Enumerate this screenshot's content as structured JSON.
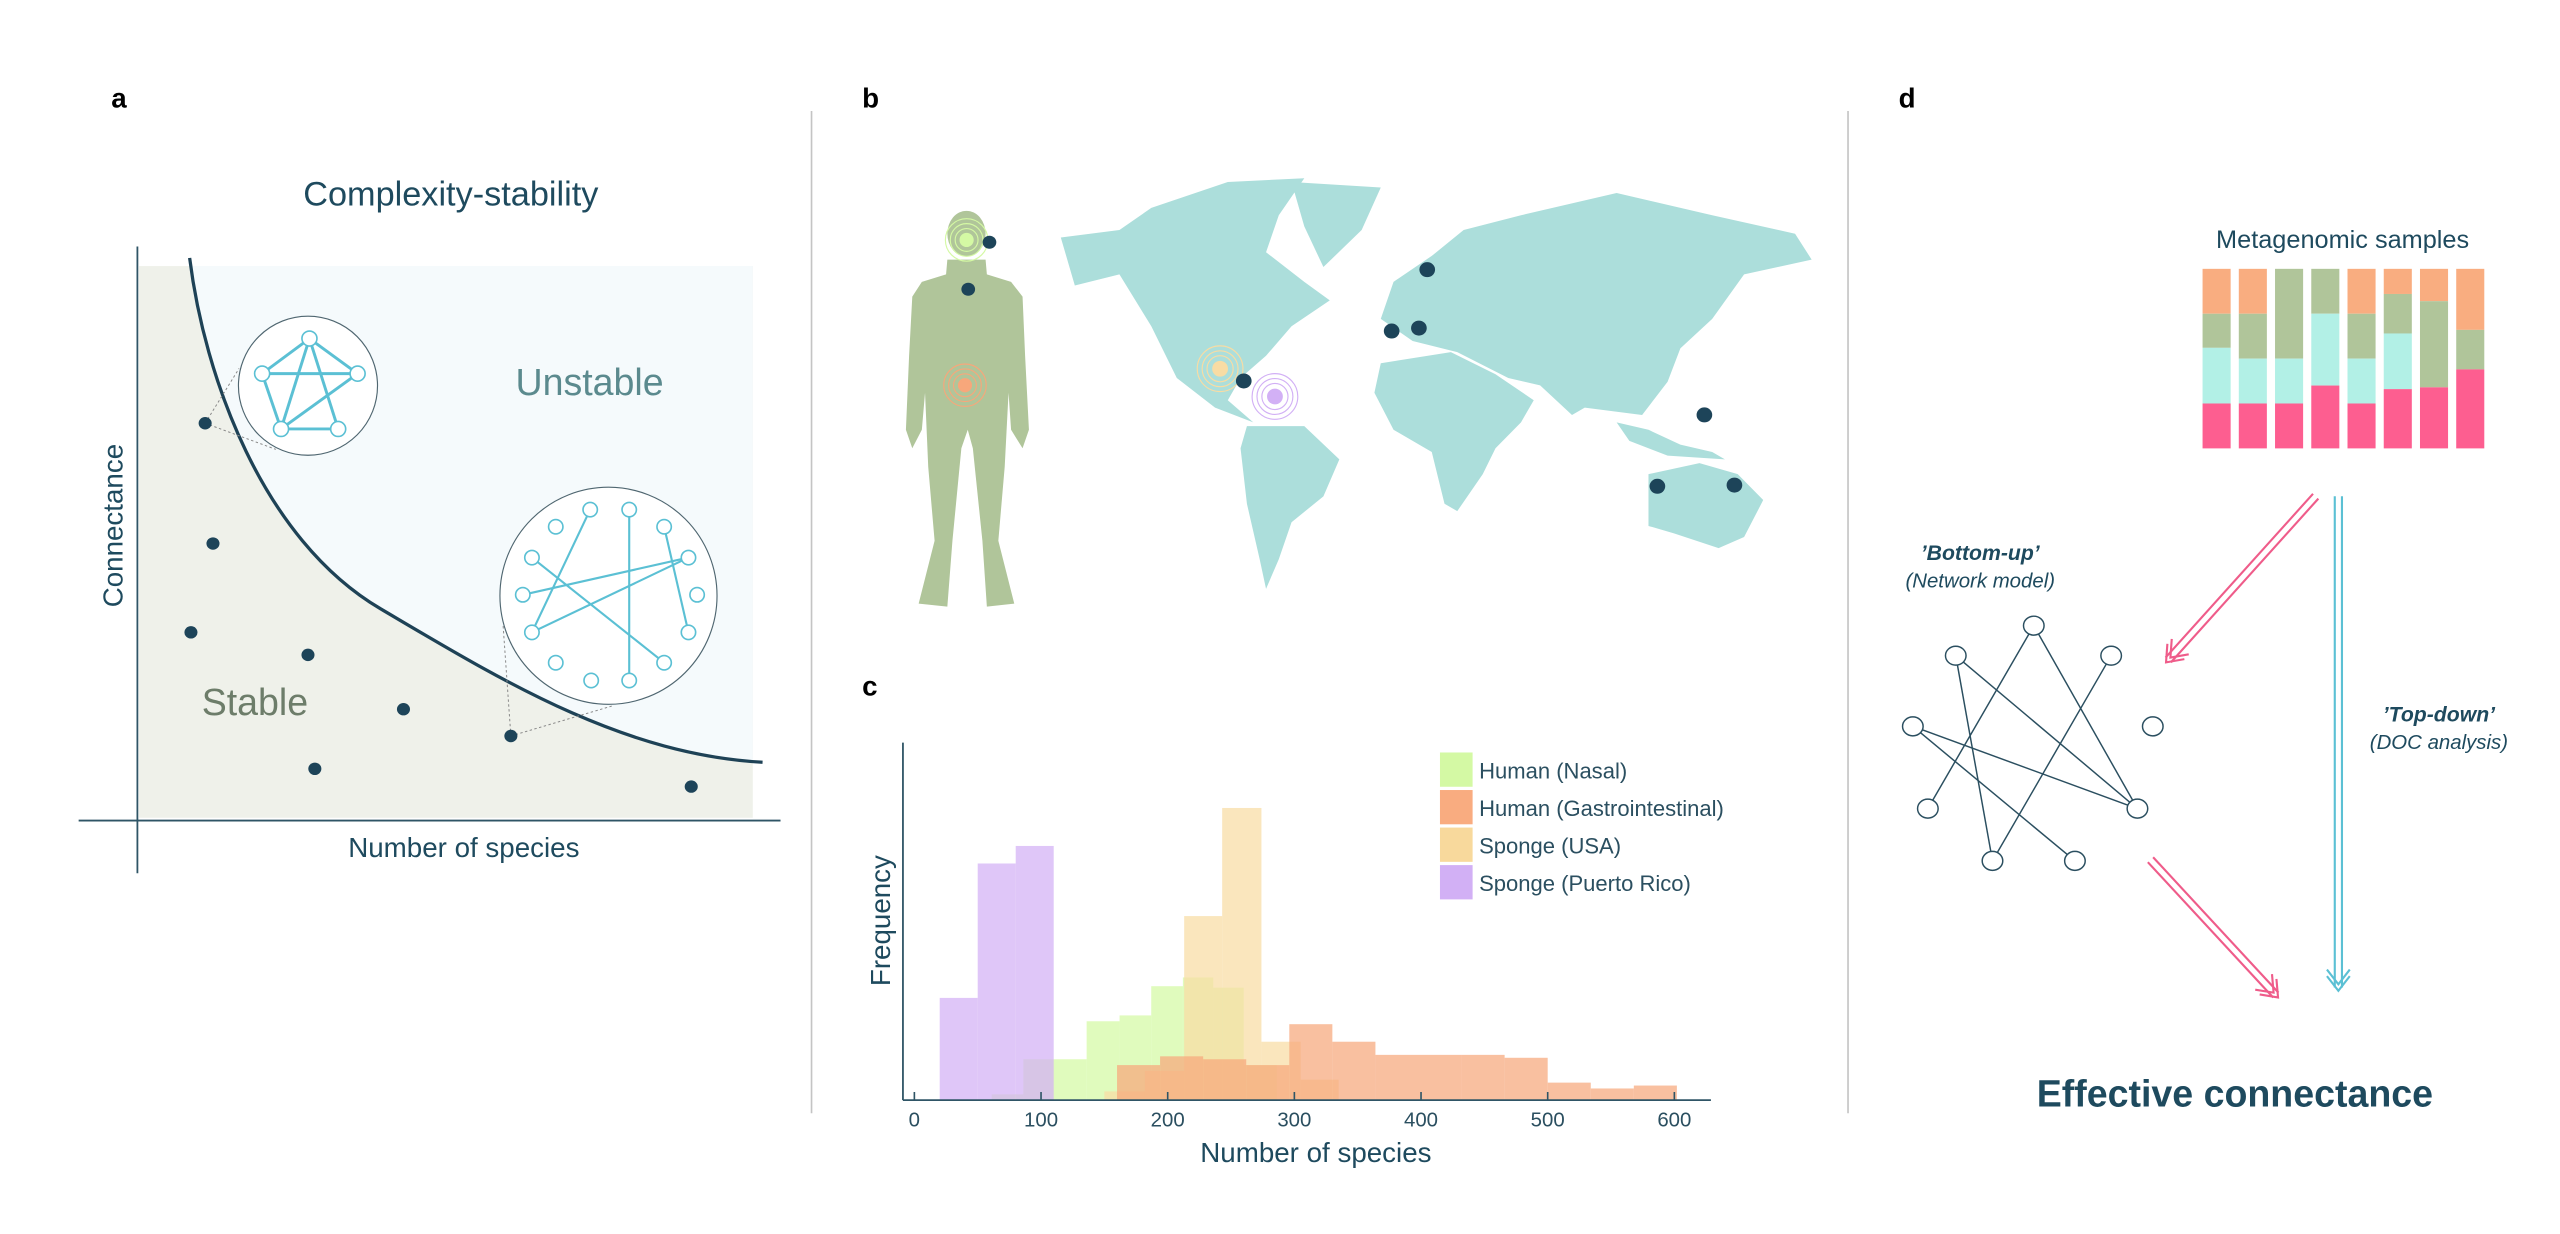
{
  "panel_labels": {
    "a": "a",
    "b": "b",
    "c": "c",
    "d": "d"
  },
  "panel_a": {
    "title": "Complexity-stability",
    "xlabel": "Number of species",
    "ylabel": "Connectance",
    "region_unstable": "Unstable",
    "region_stable": "Stable"
  },
  "panel_b": {
    "marker_colors": {
      "human_nasal": "#d4f9a4",
      "human_gut": "#f7a77b",
      "sponge_usa": "#f8dca4",
      "sponge_puerto_rico": "#d2b0f5",
      "site": "#1d4459"
    },
    "map_color": "#acdedb",
    "human_color": "#b0c59a"
  },
  "panel_d": {
    "samples_title": "Metagenomic samples",
    "bottom_up": "’Bottom-up’",
    "bottom_up_sub": "(Network model)",
    "top_down": "’Top-down’",
    "top_down_sub": "(DOC analysis)",
    "result": "Effective connectance",
    "segment_colors": [
      "#f9ad80",
      "#b0c59a",
      "#b2f0e6",
      "#fd5e90"
    ],
    "samples": [
      [
        0.25,
        0.19,
        0.31,
        0.25
      ],
      [
        0.25,
        0.25,
        0.25,
        0.25
      ],
      [
        0.0,
        0.5,
        0.25,
        0.25
      ],
      [
        0.0,
        0.25,
        0.4,
        0.35
      ],
      [
        0.25,
        0.25,
        0.25,
        0.25
      ],
      [
        0.14,
        0.22,
        0.31,
        0.33
      ],
      [
        0.18,
        0.48,
        0.0,
        0.34
      ],
      [
        0.34,
        0.22,
        0.0,
        0.44
      ]
    ],
    "arrow_colors": {
      "bottom_up": "#ef5c8a",
      "top_down": "#5bc0d4"
    }
  },
  "chart_data": {
    "type": "bar",
    "subtype": "overlapping histogram",
    "xlabel": "Number of species",
    "ylabel": "Frequency",
    "xlim": [
      -10,
      630
    ],
    "ylim": [
      0,
      122
    ],
    "xticks": [
      "0",
      "100",
      "200",
      "300",
      "400",
      "500",
      "600"
    ],
    "yticks": [],
    "legend_position": "top-right",
    "series": [
      {
        "name": "Human (Nasal)",
        "color": "#d4f9a4",
        "bins": [
          [
            61,
            86,
            2
          ],
          [
            86,
            111,
            14
          ],
          [
            111,
            136,
            14
          ],
          [
            136,
            162,
            27
          ],
          [
            162,
            187,
            29
          ],
          [
            187,
            212,
            39
          ],
          [
            212,
            236,
            42
          ],
          [
            236,
            260,
            38.5
          ],
          [
            260,
            286,
            12
          ]
        ]
      },
      {
        "name": "Human (Gastrointestinal)",
        "color": "#f7a77b",
        "bins": [
          [
            160,
            194,
            12
          ],
          [
            194,
            228,
            15
          ],
          [
            228,
            262,
            14
          ],
          [
            262,
            296,
            12
          ],
          [
            296,
            330,
            26
          ],
          [
            330,
            364,
            20
          ],
          [
            364,
            398,
            15.5
          ],
          [
            398,
            432,
            15.5
          ],
          [
            432,
            466,
            15.5
          ],
          [
            466,
            500,
            14.5
          ],
          [
            500,
            534,
            6
          ],
          [
            534,
            568,
            4
          ],
          [
            568,
            602,
            5
          ]
        ]
      },
      {
        "name": "Sponge (USA)",
        "color": "#f8dca4",
        "bins": [
          [
            150,
            182,
            3
          ],
          [
            182,
            213,
            10
          ],
          [
            213,
            243,
            63
          ],
          [
            243,
            274,
            100
          ],
          [
            274,
            305,
            20
          ],
          [
            305,
            335,
            7
          ]
        ]
      },
      {
        "name": "Sponge (Puerto Rico)",
        "color": "#d2b0f5",
        "bins": [
          [
            20,
            50,
            35
          ],
          [
            50,
            80,
            81
          ],
          [
            80,
            110,
            87
          ]
        ]
      }
    ]
  }
}
